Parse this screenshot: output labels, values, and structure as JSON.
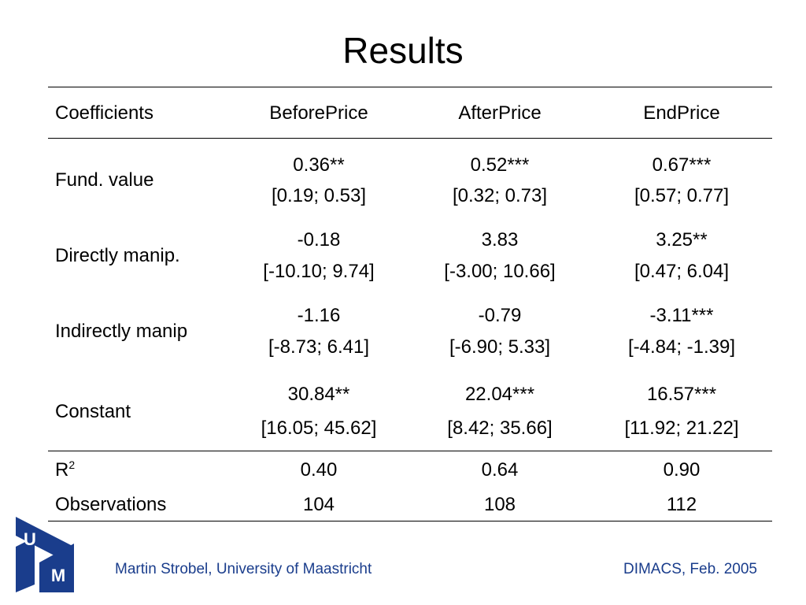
{
  "title": "Results",
  "table": {
    "headers": [
      "Coefficients",
      "BeforePrice",
      "AfterPrice",
      "EndPrice"
    ],
    "rows": [
      {
        "label": "Fund. value",
        "cells": [
          {
            "coef": "0.36**",
            "ci": "[0.19; 0.53]"
          },
          {
            "coef": "0.52***",
            "ci": "[0.32; 0.73]"
          },
          {
            "coef": "0.67***",
            "ci": "[0.57; 0.77]"
          }
        ]
      },
      {
        "label": "Directly manip.",
        "cells": [
          {
            "coef": "-0.18",
            "ci": "[-10.10; 9.74]"
          },
          {
            "coef": "3.83",
            "ci": "[-3.00; 10.66]"
          },
          {
            "coef": "3.25**",
            "ci": "[0.47; 6.04]"
          }
        ]
      },
      {
        "label": "Indirectly manip",
        "cells": [
          {
            "coef": "-1.16",
            "ci": "[-8.73; 6.41]"
          },
          {
            "coef": "-0.79",
            "ci": "[-6.90; 5.33]"
          },
          {
            "coef": "-3.11***",
            "ci": "[-4.84; -1.39]"
          }
        ]
      },
      {
        "label": "Constant",
        "cells": [
          {
            "coef": "30.84**",
            "ci": "[16.05; 45.62]"
          },
          {
            "coef": "22.04***",
            "ci": "[8.42; 35.66]"
          },
          {
            "coef": "16.57***",
            "ci": "[11.92; 21.22]"
          }
        ]
      }
    ],
    "stats": {
      "r2": {
        "label": "R",
        "sup": "2",
        "values": [
          "0.40",
          "0.64",
          "0.90"
        ]
      },
      "obs": {
        "label": "Observations",
        "values": [
          "104",
          "108",
          "112"
        ]
      }
    }
  },
  "footer": {
    "logo_text": [
      "U",
      "M"
    ],
    "author": "Martin Strobel, University of Maastricht",
    "event": "DIMACS, Feb. 2005",
    "color": "#1a3d8c",
    "logo_color": "#1a3d8c"
  }
}
